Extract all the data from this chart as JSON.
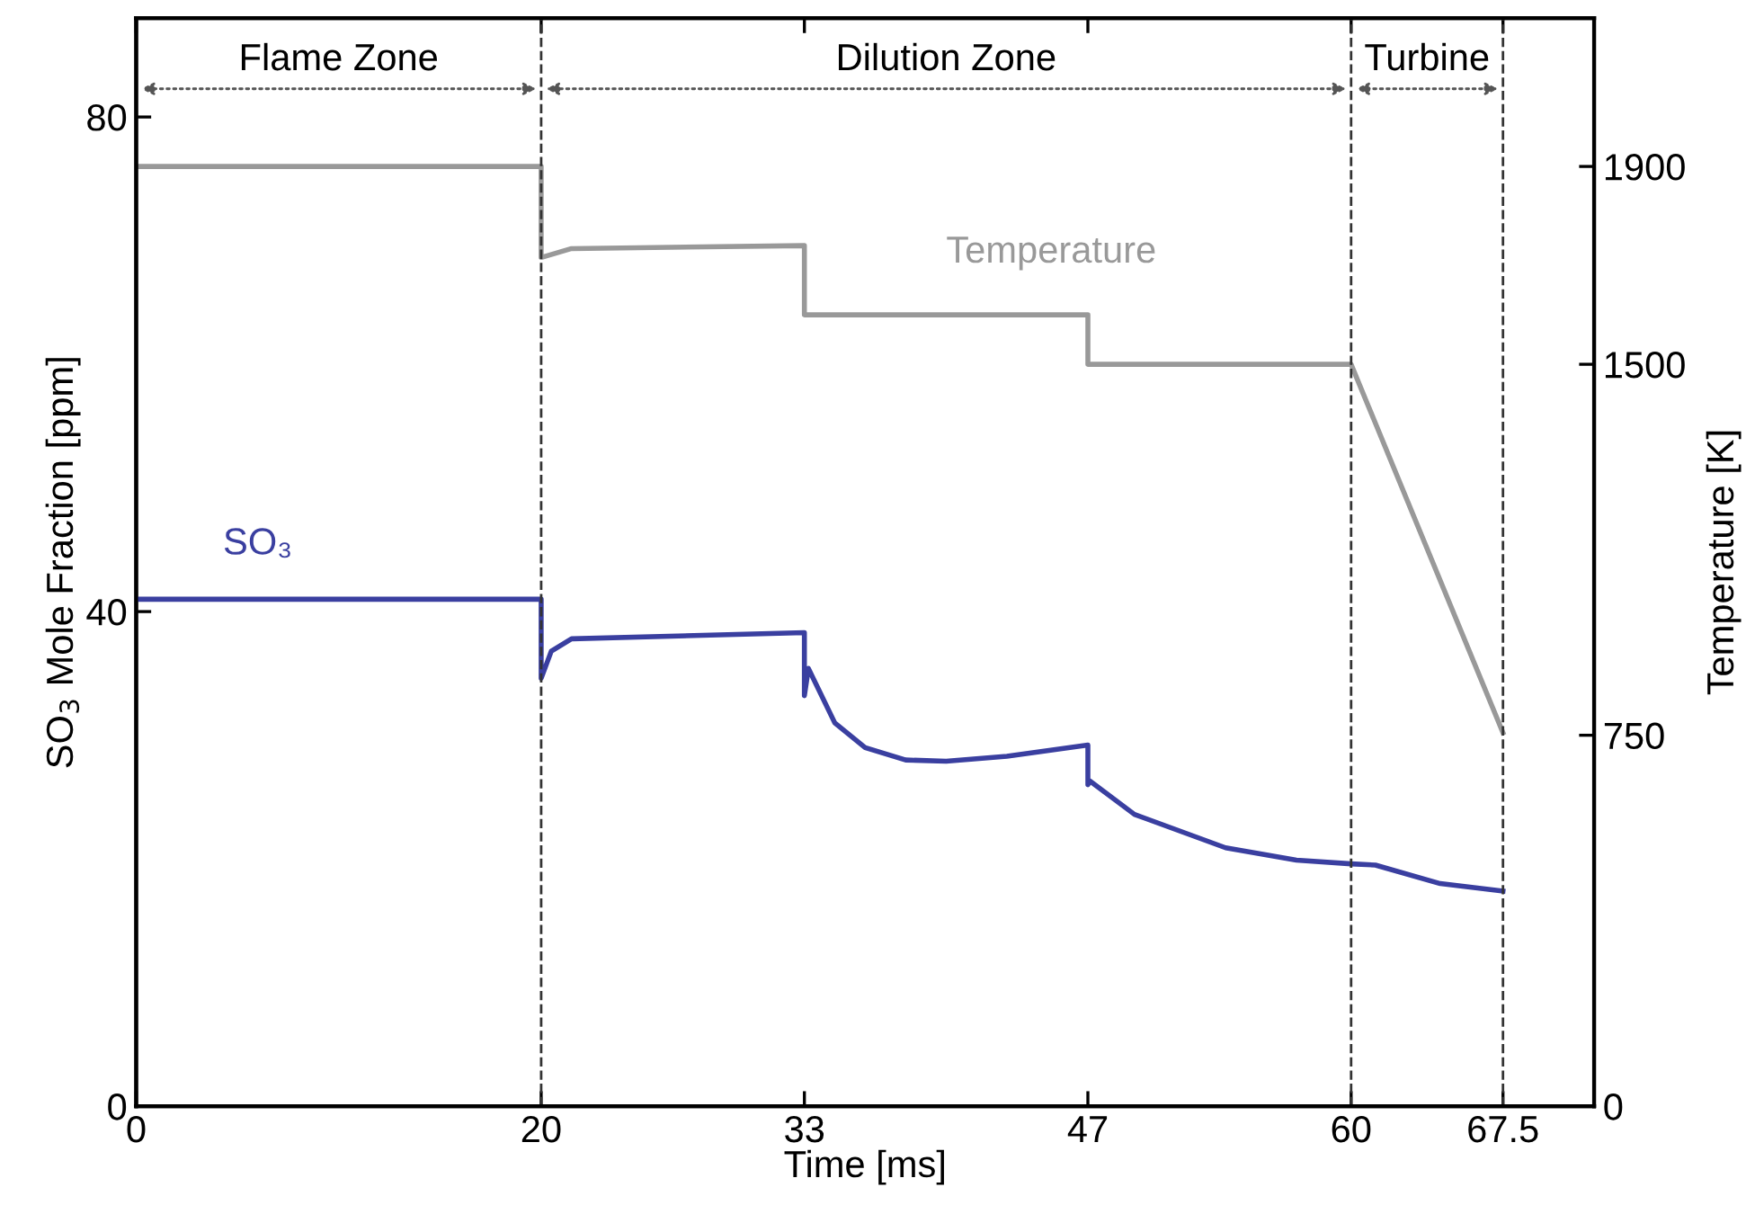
{
  "chart_data": {
    "type": "line",
    "xlabel": "Time [ms]",
    "ylabel": "SO$_{3}$ Mole Fraction [ppm]",
    "y2label": "Temperature [K]",
    "xlim": [
      0,
      72
    ],
    "xticks": [
      0,
      20,
      33,
      47,
      60,
      67.5
    ],
    "ylim": [
      0,
      88
    ],
    "yticks": [
      0,
      40,
      80
    ],
    "y2lim": [
      0,
      2200
    ],
    "y2ticks": [
      0,
      750,
      1500,
      1900
    ],
    "grid": false,
    "line_style": "solid",
    "series": [
      {
        "name": "SO₃",
        "color": "#3a3fa0",
        "x": [
          0,
          20,
          20,
          20.5,
          21.5,
          33,
          33,
          33.2,
          34.5,
          36,
          38,
          40,
          43,
          47,
          47,
          47.1,
          49.3,
          53.8,
          57.3,
          60,
          61.2,
          64.4,
          67.5
        ],
        "values": [
          41,
          41,
          34.6,
          36.8,
          37.8,
          38.3,
          33.2,
          35.4,
          31,
          29,
          28,
          27.9,
          28.3,
          29.2,
          26,
          26.3,
          23.6,
          20.9,
          19.9,
          19.6,
          19.5,
          18,
          17.4
        ]
      },
      {
        "name": "Temperature",
        "color": "#999999",
        "axis": "y2",
        "x": [
          0,
          20,
          20,
          21.5,
          33,
          33,
          47,
          47,
          60,
          67.5
        ],
        "values": [
          1900,
          1900,
          1716,
          1734,
          1740,
          1600,
          1600,
          1500,
          1500,
          755
        ]
      }
    ],
    "ref_lines": [
      {
        "axis": "x",
        "value": 20,
        "line_style": "dashed"
      },
      {
        "axis": "x",
        "value": 60,
        "line_style": "dashed"
      },
      {
        "axis": "x",
        "value": 67.5,
        "line_style": "dashed"
      }
    ],
    "annotations": [
      "Flame Zone",
      "Dilution Zone",
      "Turbine"
    ]
  }
}
